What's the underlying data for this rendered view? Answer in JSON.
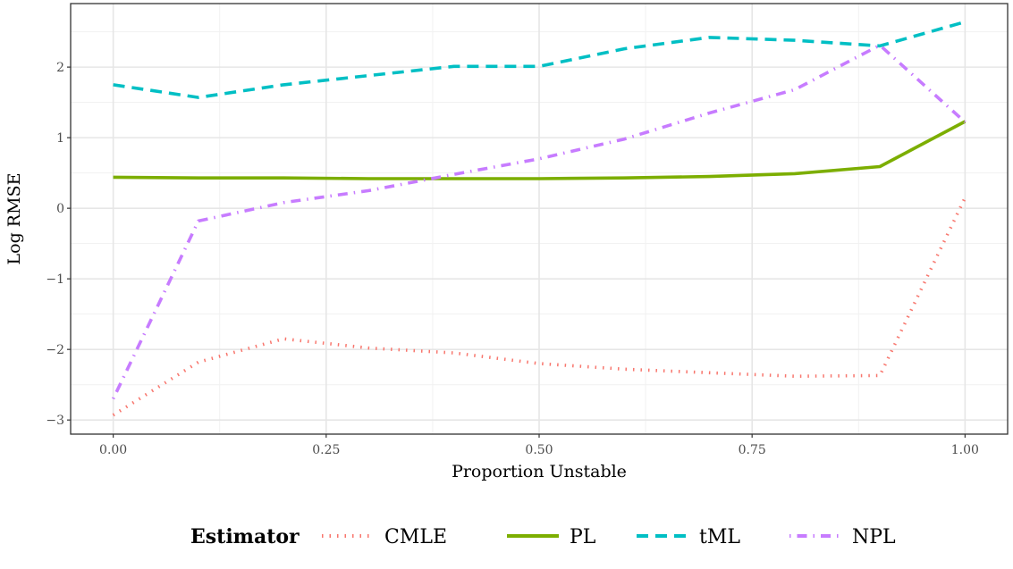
{
  "chart_data": {
    "type": "line",
    "xlabel": "Proportion Unstable",
    "ylabel": "Log RMSE",
    "x": [
      0.0,
      0.1,
      0.2,
      0.3,
      0.4,
      0.5,
      0.6,
      0.7,
      0.8,
      0.9,
      1.0
    ],
    "xlim": [
      -0.05,
      1.05
    ],
    "ylim": [
      -3.2,
      2.9
    ],
    "x_ticks": [
      {
        "value": 0.0,
        "label": "0.00"
      },
      {
        "value": 0.25,
        "label": "0.25"
      },
      {
        "value": 0.5,
        "label": "0.50"
      },
      {
        "value": 0.75,
        "label": "0.75"
      },
      {
        "value": 1.0,
        "label": "1.00"
      }
    ],
    "y_ticks": [
      {
        "value": -3,
        "label": "−3"
      },
      {
        "value": -2,
        "label": "−2"
      },
      {
        "value": -1,
        "label": "−1"
      },
      {
        "value": 0,
        "label": "0"
      },
      {
        "value": 1,
        "label": "1"
      },
      {
        "value": 2,
        "label": "2"
      }
    ],
    "grid": true,
    "legend_position": "bottom",
    "legend_title": "Estimator",
    "series": [
      {
        "name": "CMLE",
        "color": "#F8766D",
        "dash": "dotted",
        "values": [
          -2.93,
          -2.18,
          -1.85,
          -1.98,
          -2.05,
          -2.2,
          -2.28,
          -2.33,
          -2.38,
          -2.37,
          0.15
        ]
      },
      {
        "name": "PL",
        "color": "#7CAE00",
        "dash": "solid",
        "values": [
          0.44,
          0.43,
          0.43,
          0.42,
          0.42,
          0.42,
          0.43,
          0.45,
          0.49,
          0.59,
          1.23
        ]
      },
      {
        "name": "tML",
        "color": "#00BFC4",
        "dash": "dashed",
        "values": [
          1.75,
          1.57,
          1.75,
          1.88,
          2.01,
          2.01,
          2.26,
          2.42,
          2.38,
          2.3,
          2.64
        ]
      },
      {
        "name": "NPL",
        "color": "#C77CFF",
        "dash": "dotdash",
        "values": [
          -2.7,
          -0.18,
          0.08,
          0.25,
          0.48,
          0.7,
          0.98,
          1.35,
          1.68,
          2.31,
          1.22
        ]
      }
    ]
  }
}
